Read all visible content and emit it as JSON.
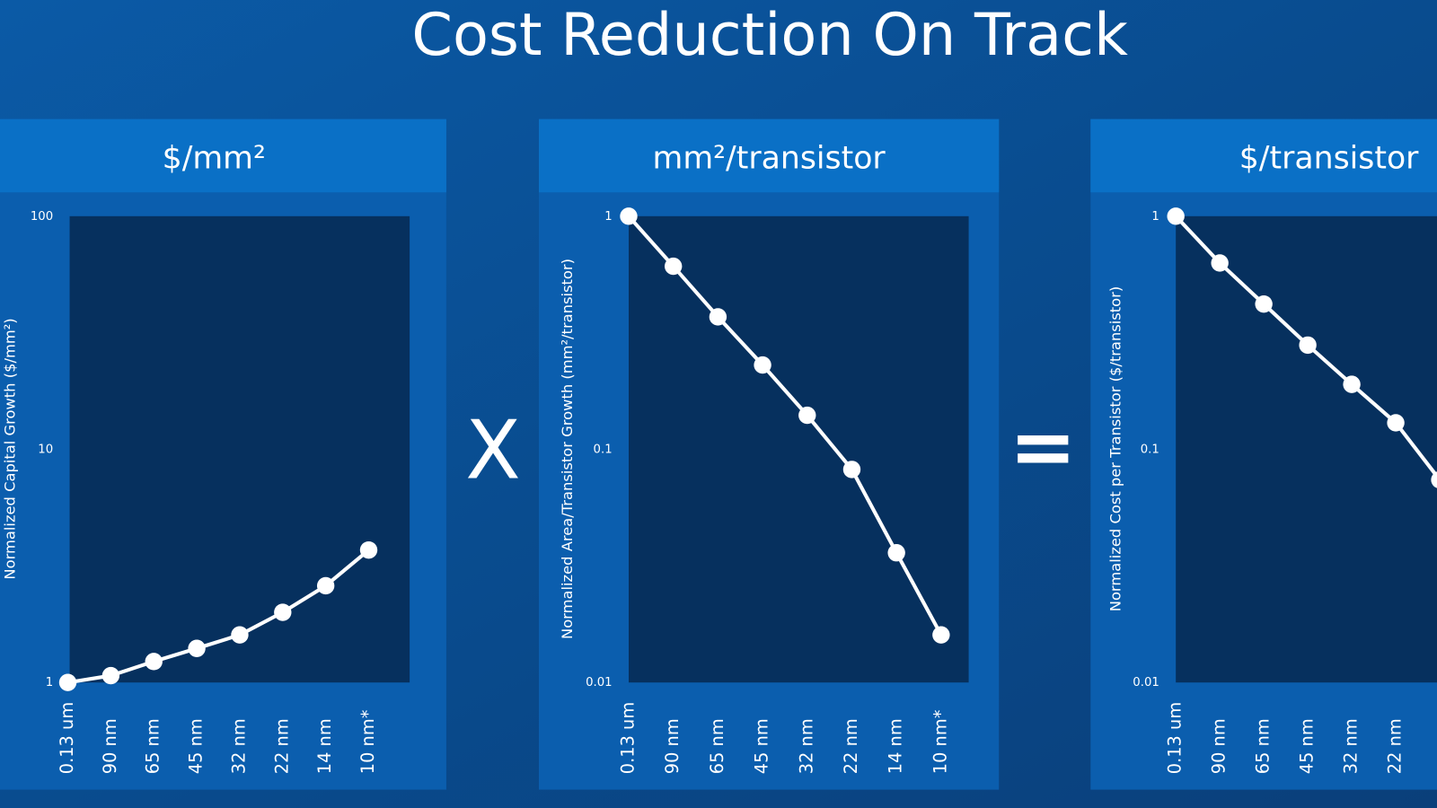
{
  "title": "Cost Reduction On Track",
  "operators": [
    "X",
    "="
  ],
  "chart_data": [
    {
      "type": "line",
      "title": "$/mm²",
      "y_label": "Normalized Capital Growth ($/mm²)",
      "categories": [
        "0.13 um",
        "90 nm",
        "65 nm",
        "45 nm",
        "32 nm",
        "22 nm",
        "14 nm",
        "10 nm*"
      ],
      "values": [
        1,
        1.07,
        1.23,
        1.4,
        1.6,
        2,
        2.6,
        3.7
      ],
      "color": "#ffffff",
      "log_scale": true,
      "ylim": [
        1,
        100
      ],
      "yticks": [
        1,
        10,
        100
      ]
    },
    {
      "type": "line",
      "title": "mm²/transistor",
      "y_label": "Normalized Area/Transistor Growth (mm²/transistor)",
      "categories": [
        "0.13 um",
        "90 nm",
        "65 nm",
        "45 nm",
        "32 nm",
        "22 nm",
        "14 nm",
        "10 nm*"
      ],
      "values": [
        1,
        0.61,
        0.37,
        0.23,
        0.14,
        0.082,
        0.036,
        0.016
      ],
      "color": "#ffffff",
      "log_scale": true,
      "ylim": [
        0.01,
        1
      ],
      "yticks": [
        0.01,
        0.1,
        1
      ]
    },
    {
      "type": "line",
      "title": "$/transistor",
      "y_label": "Normalized Cost per Transistor ($/transistor)",
      "categories": [
        "0.13 um",
        "90 nm",
        "65 nm",
        "45 nm",
        "32 nm",
        "22 nm",
        null
      ],
      "values": [
        1,
        0.63,
        0.42,
        0.28,
        0.19,
        0.13,
        0.074
      ],
      "color": "#ffffff",
      "log_scale": true,
      "ylim": [
        0.01,
        1
      ],
      "yticks": [
        0.01,
        0.1,
        1
      ]
    }
  ]
}
